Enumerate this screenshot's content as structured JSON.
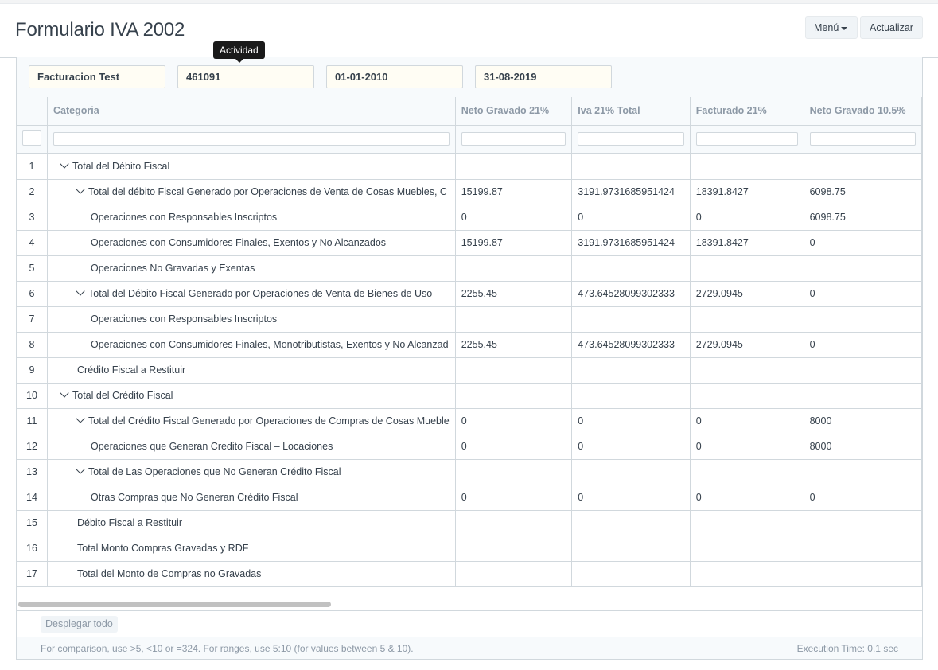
{
  "page": {
    "title": "Formulario IVA 2002"
  },
  "toolbar": {
    "menu_label": "Menú",
    "refresh_label": "Actualizar"
  },
  "filters": {
    "company": "Facturacion Test",
    "activity": "461091",
    "from_date": "01-01-2010",
    "to_date": "31-08-2019",
    "tooltip": "Actividad"
  },
  "table": {
    "columns": [
      "Categoria",
      "Neto Gravado 21%",
      "Iva 21% Total",
      "Facturado 21%",
      "Neto Gravado 10.5%"
    ],
    "rows": [
      {
        "idx": "1",
        "level": 1,
        "toggle": true,
        "cat": "Total del Débito Fiscal",
        "c1": "",
        "c2": "",
        "c3": "",
        "c4": ""
      },
      {
        "idx": "2",
        "level": 2,
        "toggle": true,
        "cat": "Total del débito Fiscal Generado por Operaciones de Venta de Cosas Muebles, C",
        "c1": "15199.87",
        "c2": "3191.9731685951424",
        "c3": "18391.8427",
        "c4": "6098.75"
      },
      {
        "idx": "3",
        "level": 3,
        "toggle": false,
        "cat": "Operaciones con Responsables Inscriptos",
        "c1": "0",
        "c2": "0",
        "c3": "0",
        "c4": "6098.75"
      },
      {
        "idx": "4",
        "level": 3,
        "toggle": false,
        "cat": "Operaciones con Consumidores Finales, Exentos y No Alcanzados",
        "c1": "15199.87",
        "c2": "3191.9731685951424",
        "c3": "18391.8427",
        "c4": "0"
      },
      {
        "idx": "5",
        "level": 3,
        "toggle": false,
        "cat": "Operaciones No Gravadas y Exentas",
        "c1": "",
        "c2": "",
        "c3": "",
        "c4": ""
      },
      {
        "idx": "6",
        "level": 2,
        "toggle": true,
        "cat": "Total del Débito Fiscal Generado por Operaciones de Venta de Bienes de Uso",
        "c1": "2255.45",
        "c2": "473.64528099302333",
        "c3": "2729.0945",
        "c4": "0"
      },
      {
        "idx": "7",
        "level": 3,
        "toggle": false,
        "cat": "Operaciones con Responsables Inscriptos",
        "c1": "",
        "c2": "",
        "c3": "",
        "c4": ""
      },
      {
        "idx": "8",
        "level": 3,
        "toggle": false,
        "cat": "Operaciones con Consumidores Finales, Monotributistas, Exentos y No Alcanzad",
        "c1": "2255.45",
        "c2": "473.64528099302333",
        "c3": "2729.0945",
        "c4": "0"
      },
      {
        "idx": "9",
        "level": 2,
        "toggle": false,
        "cat": "Crédito Fiscal a Restituir",
        "c1": "",
        "c2": "",
        "c3": "",
        "c4": ""
      },
      {
        "idx": "10",
        "level": 1,
        "toggle": true,
        "cat": "Total del Crédito Fiscal",
        "c1": "",
        "c2": "",
        "c3": "",
        "c4": ""
      },
      {
        "idx": "11",
        "level": 2,
        "toggle": true,
        "cat": "Total del Crédito Fiscal Generado por Operaciones de Compras de Cosas Mueble",
        "c1": "0",
        "c2": "0",
        "c3": "0",
        "c4": "8000"
      },
      {
        "idx": "12",
        "level": 3,
        "toggle": false,
        "cat": "Operaciones que Generan Credito Fiscal – Locaciones",
        "c1": "0",
        "c2": "0",
        "c3": "0",
        "c4": "8000"
      },
      {
        "idx": "13",
        "level": 2,
        "toggle": true,
        "cat": "Total de Las Operaciones que No Generan Crédito Fiscal",
        "c1": "",
        "c2": "",
        "c3": "",
        "c4": ""
      },
      {
        "idx": "14",
        "level": 3,
        "toggle": false,
        "cat": "Otras Compras que No Generan Crédito Fiscal",
        "c1": "0",
        "c2": "0",
        "c3": "0",
        "c4": "0"
      },
      {
        "idx": "15",
        "level": 2,
        "toggle": false,
        "cat": "Débito Fiscal a Restituir",
        "c1": "",
        "c2": "",
        "c3": "",
        "c4": ""
      },
      {
        "idx": "16",
        "level": 2,
        "toggle": false,
        "cat": "Total Monto Compras Gravadas y RDF",
        "c1": "",
        "c2": "",
        "c3": "",
        "c4": ""
      },
      {
        "idx": "17",
        "level": 2,
        "toggle": false,
        "cat": "Total del Monto de Compras no Gravadas",
        "c1": "",
        "c2": "",
        "c3": "",
        "c4": ""
      }
    ]
  },
  "footer": {
    "expand_all": "Desplegar todo",
    "hint": "For comparison, use >5, <10 or =324. For ranges, use 5:10 (for values between 5 & 10).",
    "exec_time": "Execution Time: 0.1 sec"
  }
}
